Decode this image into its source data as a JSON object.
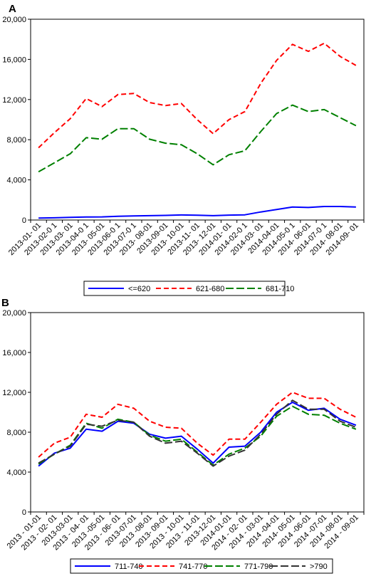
{
  "chart_data": [
    {
      "type": "line",
      "panel_label": "A",
      "categories": [
        "2013-01- 01",
        "2013-02-0 1",
        "2013-03- 01",
        "2013-04-0 1",
        "2013- 05-01",
        "2013-06-0 1",
        "2013-07-0 1",
        "2013- 08-01",
        "2013-09-01",
        "2013- 10-01",
        "2013-11- 01",
        "2013- 12-01",
        "2014-01- 01",
        "2014-02-0 1",
        "2014-03- 01",
        "2014-04-01",
        "2014-05-0 1",
        "2014- 06-01",
        "2014-07-0 1",
        "2014- 08-01",
        "2014-09- 01"
      ],
      "ylim": [
        0,
        20000
      ],
      "yticks": [
        "0",
        "4,000",
        "8,000",
        "12,000",
        "16,000",
        "20,000"
      ],
      "ytick_values": [
        0,
        4000,
        8000,
        12000,
        16000,
        20000
      ],
      "legend_position": "bottom",
      "series": [
        {
          "name": "<=620",
          "color": "#0000ff",
          "dash": "solid",
          "values": [
            200,
            220,
            260,
            300,
            310,
            370,
            410,
            430,
            460,
            500,
            480,
            430,
            490,
            520,
            800,
            1050,
            1300,
            1250,
            1350,
            1350,
            1300
          ]
        },
        {
          "name": "621-680",
          "color": "#ff0000",
          "dash": "dash",
          "values": [
            7200,
            8700,
            10100,
            12100,
            11300,
            12500,
            12600,
            11700,
            11400,
            11600,
            10000,
            8600,
            10000,
            10800,
            13600,
            15900,
            17500,
            16800,
            17600,
            16300,
            15400
          ]
        },
        {
          "name": "681-710",
          "color": "#008000",
          "dash": "longdash",
          "values": [
            4800,
            5700,
            6600,
            8200,
            8050,
            9100,
            9100,
            8050,
            7650,
            7500,
            6600,
            5500,
            6500,
            6900,
            8800,
            10600,
            11450,
            10800,
            11000,
            10200,
            9400
          ]
        }
      ]
    },
    {
      "type": "line",
      "panel_label": "B",
      "categories": [
        "2013 - 01-01",
        "2013 - 02- 01",
        "2013-03-01",
        "2013 - 04- 01",
        "2013 -05-01",
        "2013 - 06- 01",
        "2013-07-01",
        "2013 -08-01",
        "2013- 09-01",
        "2013 - 10-01",
        "2013 - 11-01",
        "2013-12-01",
        "2014-01-01",
        "2014 - 02- 01",
        "2014 - 03-01",
        "2014 -04-01",
        "2014- 05-01",
        "2014 -06-01",
        "2014 -07-01",
        "2014 -08-01",
        "2014 - 09-01"
      ],
      "ylim": [
        0,
        20000
      ],
      "yticks": [
        "0",
        "4,000",
        "8,000",
        "12,000",
        "16,000",
        "20,000"
      ],
      "ytick_values": [
        0,
        4000,
        8000,
        12000,
        16000,
        20000
      ],
      "legend_position": "bottom",
      "series": [
        {
          "name": "711-740",
          "color": "#0000ff",
          "dash": "solid",
          "values": [
            4600,
            5900,
            6400,
            8300,
            8100,
            9100,
            8900,
            7800,
            7400,
            7600,
            6300,
            4900,
            6500,
            6600,
            8000,
            10000,
            11000,
            10200,
            10400,
            9300,
            8700
          ]
        },
        {
          "name": "741-770",
          "color": "#ff0000",
          "dash": "dash",
          "values": [
            5500,
            6900,
            7500,
            9800,
            9500,
            10800,
            10400,
            9100,
            8500,
            8400,
            6900,
            5700,
            7300,
            7300,
            9000,
            10800,
            12000,
            11400,
            11400,
            10300,
            9500
          ]
        },
        {
          "name": "771-790",
          "color": "#008000",
          "dash": "longdash",
          "values": [
            4800,
            5800,
            6700,
            8900,
            8400,
            9300,
            9000,
            7700,
            7100,
            7300,
            6000,
            4700,
            5800,
            6400,
            7600,
            9600,
            10600,
            9800,
            9700,
            8900,
            8300
          ]
        },
        {
          "name": ">790",
          "color": "#333333",
          "dash": "longdash",
          "values": [
            4900,
            5800,
            6600,
            8800,
            8600,
            9200,
            9000,
            7600,
            6900,
            7100,
            5900,
            4600,
            5600,
            6200,
            7800,
            9800,
            11200,
            10300,
            10300,
            9100,
            8500
          ]
        }
      ]
    }
  ]
}
